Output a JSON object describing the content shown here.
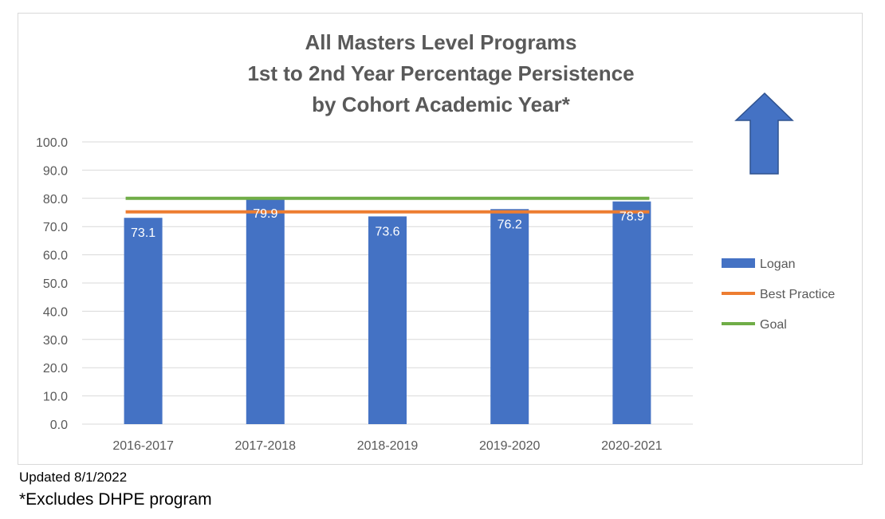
{
  "chart_data": {
    "type": "bar",
    "title_lines": [
      "All Masters Level Programs",
      "1st to 2nd Year Percentage Persistence",
      "by Cohort Academic Year*"
    ],
    "categories": [
      "2016-2017",
      "2017-2018",
      "2018-2019",
      "2019-2020",
      "2020-2021"
    ],
    "series": [
      {
        "name": "Logan",
        "kind": "bar",
        "color": "#4472c4",
        "values": [
          73.1,
          79.9,
          73.6,
          76.2,
          78.9
        ]
      },
      {
        "name": "Best Practice",
        "kind": "line",
        "color": "#ed7d31",
        "values": [
          75.2,
          75.2,
          75.2,
          75.2,
          75.2
        ]
      },
      {
        "name": "Goal",
        "kind": "line",
        "color": "#70ad47",
        "values": [
          80,
          80,
          80,
          80,
          80
        ]
      }
    ],
    "data_labels": [
      "73.1",
      "79.9",
      "73.6",
      "76.2",
      "78.9"
    ],
    "y_ticks": [
      "0.0",
      "10.0",
      "20.0",
      "30.0",
      "40.0",
      "50.0",
      "60.0",
      "70.0",
      "80.0",
      "90.0",
      "100.0"
    ],
    "ylim": [
      0,
      100
    ],
    "grid": true,
    "legend_position": "right",
    "annotation": {
      "shape": "up-arrow-icon",
      "color": "#4472c4"
    }
  },
  "notes": {
    "updated": "Updated 8/1/2022",
    "excludes": "*Excludes DHPE program"
  }
}
